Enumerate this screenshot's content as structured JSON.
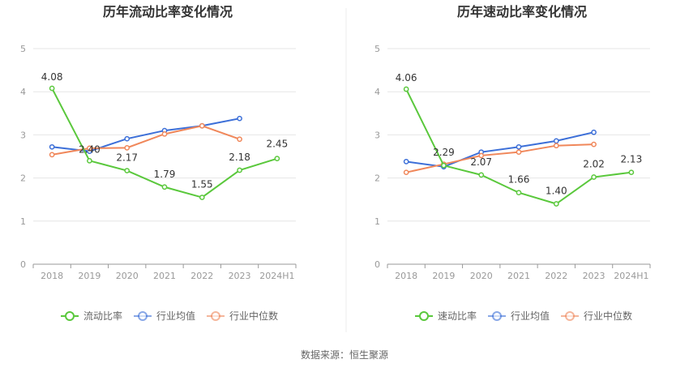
{
  "source": "数据来源：恒生聚源",
  "chart_data": [
    {
      "type": "line",
      "title": "历年流动比率变化情况",
      "categories": [
        "2018",
        "2019",
        "2020",
        "2021",
        "2022",
        "2023",
        "2024H1"
      ],
      "ylim": [
        0,
        5
      ],
      "yticks": [
        "0",
        "1",
        "2",
        "3",
        "4",
        "5"
      ],
      "grid": true,
      "legend_position": "bottom",
      "series": [
        {
          "name": "流动比率",
          "color": "#5ac83c",
          "values": [
            4.08,
            2.4,
            2.17,
            1.79,
            1.55,
            2.18,
            2.45
          ],
          "labels": [
            "4.08",
            "2.40",
            "2.17",
            "1.79",
            "1.55",
            "2.18",
            "2.45"
          ]
        },
        {
          "name": "行业均值",
          "color": "#3c6fd8",
          "values": [
            2.72,
            2.62,
            2.91,
            3.1,
            3.21,
            3.38,
            null
          ]
        },
        {
          "name": "行业中位数",
          "color": "#f0875a",
          "values": [
            2.54,
            2.69,
            2.7,
            3.02,
            3.21,
            2.9,
            null
          ]
        }
      ]
    },
    {
      "type": "line",
      "title": "历年速动比率变化情况",
      "categories": [
        "2018",
        "2019",
        "2020",
        "2021",
        "2022",
        "2023",
        "2024H1"
      ],
      "ylim": [
        0,
        5
      ],
      "yticks": [
        "0",
        "1",
        "2",
        "3",
        "4",
        "5"
      ],
      "grid": true,
      "legend_position": "bottom",
      "series": [
        {
          "name": "速动比率",
          "color": "#5ac83c",
          "values": [
            4.06,
            2.29,
            2.07,
            1.66,
            1.4,
            2.02,
            2.13
          ],
          "labels": [
            "4.06",
            "2.29",
            "2.07",
            "1.66",
            "1.40",
            "2.02",
            "2.13"
          ]
        },
        {
          "name": "行业均值",
          "color": "#3c6fd8",
          "values": [
            2.38,
            2.26,
            2.6,
            2.72,
            2.86,
            3.06,
            null
          ]
        },
        {
          "name": "行业中位数",
          "color": "#f0875a",
          "values": [
            2.13,
            2.32,
            2.52,
            2.6,
            2.75,
            2.78,
            null
          ]
        }
      ]
    }
  ]
}
